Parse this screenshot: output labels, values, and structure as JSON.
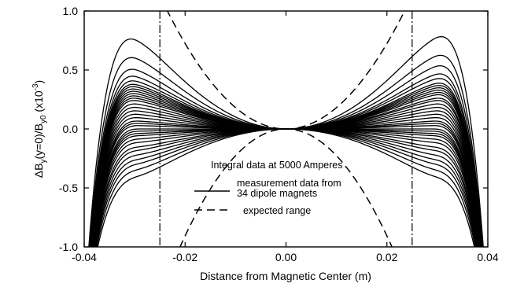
{
  "chart_data": {
    "type": "line",
    "title": "",
    "xlabel": "Distance from Magnetic Center (m)",
    "ylabel_parts": {
      "delta": "ΔB",
      "y_sub": "y",
      "mid": "(y=0)/B",
      "y0_sub": "y0",
      "scale": " (x10",
      "exp_sup": "-3",
      "close": ")"
    },
    "xlim": [
      -0.04,
      0.04
    ],
    "ylim": [
      -1.0,
      1.0
    ],
    "x_ticks": [
      -0.04,
      -0.02,
      0.0,
      0.02,
      0.04
    ],
    "x_tick_labels": [
      "-0.04",
      "-0.02",
      "0.00",
      "0.02",
      "0.04"
    ],
    "y_ticks": [
      -1.0,
      -0.5,
      0.0,
      0.5,
      1.0
    ],
    "y_tick_labels": [
      "-1.0",
      "-0.5",
      "0.0",
      "0.5",
      "1.0"
    ],
    "grid": false,
    "annotation": "Integral data at 5000 Amperes",
    "legend": {
      "placement": "lower-center",
      "entries": [
        {
          "style": "solid",
          "lines": [
            "measurement data from",
            "34 dipole magnets"
          ]
        },
        {
          "style": "dashed",
          "lines": [
            "expected range"
          ]
        }
      ]
    },
    "boundary_lines_x": [
      -0.025,
      0.025
    ],
    "expected_range": {
      "x_at_y_plus1": [
        -0.0235,
        0.0235
      ],
      "x_at_y_minus1": [
        -0.021,
        0.021
      ]
    },
    "measurement_series": {
      "style": "solid",
      "count": 34,
      "peak_x_abs": 0.032,
      "peak_amplitudes": [
        0.78,
        0.62,
        0.52,
        0.46,
        0.42,
        0.39,
        0.37,
        0.35,
        0.33,
        0.31,
        0.29,
        0.27,
        0.25,
        0.22,
        0.19,
        0.16,
        0.13,
        0.1,
        0.07,
        0.05,
        0.03,
        0.0,
        -0.02,
        -0.04,
        -0.06,
        -0.09,
        -0.12,
        -0.16,
        -0.19,
        -0.23,
        -0.27,
        -0.31,
        -0.36,
        -0.42
      ],
      "right_peak_amplitudes": [
        0.8,
        0.64,
        0.55,
        0.48,
        0.44,
        0.4,
        0.38,
        0.36,
        0.34,
        0.32,
        0.3,
        0.27,
        0.25,
        0.22,
        0.19,
        0.16,
        0.13,
        0.1,
        0.07,
        0.05,
        0.03,
        0.0,
        -0.02,
        -0.04,
        -0.06,
        -0.09,
        -0.12,
        -0.16,
        -0.19,
        -0.23,
        -0.27,
        -0.31,
        -0.36,
        -0.42
      ]
    }
  }
}
